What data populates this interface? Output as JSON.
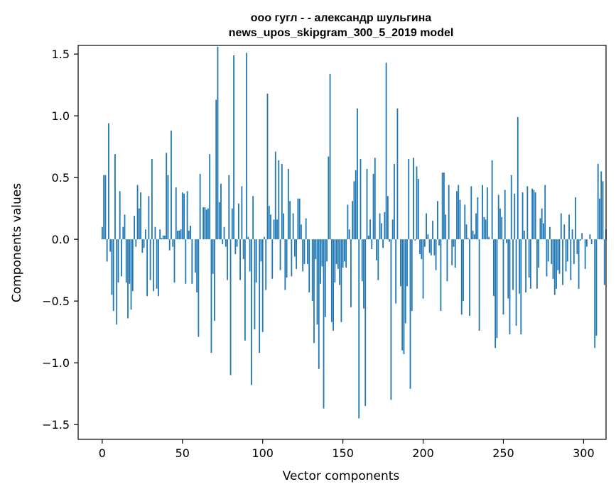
{
  "chart_data": {
    "type": "bar",
    "title_line1": "ооо гугл - - александр шульгина",
    "title_line2": "news_upos_skipgram_300_5_2019 model",
    "xlabel": "Vector components",
    "ylabel": "Components values",
    "xlim": [
      -15,
      314
    ],
    "ylim": [
      -1.62,
      1.57
    ],
    "xticks": [
      0,
      50,
      100,
      150,
      200,
      250,
      300
    ],
    "xtick_labels": [
      "0",
      "50",
      "100",
      "150",
      "200",
      "250",
      "300"
    ],
    "yticks": [
      -1.5,
      -1.0,
      -0.5,
      0.0,
      0.5,
      1.0,
      1.5
    ],
    "ytick_labels": [
      "−1.5",
      "−1.0",
      "−0.5",
      "0.0",
      "0.5",
      "1.0",
      "1.5"
    ],
    "bar_color": "#1f77b4",
    "grid": false,
    "legend": "none",
    "values": [
      0.1,
      0.52,
      0.52,
      -0.18,
      0.94,
      -0.1,
      -0.45,
      -0.58,
      0.69,
      -0.69,
      -0.35,
      0.39,
      -0.3,
      0.1,
      0.2,
      -0.35,
      -0.64,
      -0.36,
      -0.57,
      -0.42,
      0.19,
      -0.06,
      0.44,
      0.25,
      0.38,
      -0.11,
      -0.07,
      0.08,
      -0.46,
      0.35,
      -0.33,
      0.65,
      -0.42,
      0.1,
      -0.4,
      -0.46,
      0.08,
      0.01,
      0.03,
      0.03,
      0.7,
      0.52,
      -0.09,
      0.88,
      -0.06,
      -0.35,
      0.42,
      0.07,
      0.07,
      0.08,
      0.38,
      0.37,
      -0.36,
      0.39,
      0.07,
      0.11,
      -0.36,
      0.0,
      -0.27,
      -0.43,
      -0.79,
      0.53,
      0.0,
      0.26,
      0.26,
      0.24,
      0.25,
      0.69,
      -0.92,
      -0.28,
      -0.66,
      1.13,
      1.56,
      0.3,
      0.45,
      -0.04,
      0.1,
      -0.06,
      -0.33,
      0.52,
      -1.1,
      0.25,
      1.49,
      -0.12,
      -0.06,
      0.29,
      -0.33,
      0.43,
      -0.16,
      -0.82,
      1.51,
      0.02,
      -0.26,
      -1.18,
      0.35,
      -0.73,
      -0.35,
      0.0,
      -0.92,
      -0.18,
      -0.75,
      0.02,
      -0.41,
      1.18,
      0.27,
      0.2,
      -0.32,
      0.16,
      0.71,
      0.16,
      0.64,
      -0.25,
      0.61,
      0.21,
      -0.41,
      -0.31,
      0.57,
      0.31,
      -0.3,
      0.21,
      -0.14,
      -0.24,
      0.33,
      0.33,
      0.12,
      -0.26,
      -0.2,
      0.17,
      -0.2,
      -0.43,
      0.0,
      -0.5,
      -0.84,
      -0.16,
      -0.69,
      -1.05,
      -0.36,
      -0.22,
      -1.37,
      -0.63,
      -0.18,
      0.67,
      1.34,
      -0.67,
      -0.74,
      -0.35,
      -0.2,
      -0.24,
      -0.37,
      -0.67,
      -0.23,
      -0.18,
      -0.23,
      0.28,
      0.08,
      -0.55,
      0.31,
      0.47,
      0.56,
      1.06,
      -1.45,
      0.65,
      -0.34,
      -0.56,
      -1.35,
      0.57,
      0.03,
      0.16,
      -0.08,
      0.53,
      0.66,
      -0.17,
      -0.33,
      0.21,
      0.13,
      -0.07,
      0.22,
      1.43,
      0.35,
      -0.02,
      -1.3,
      0.16,
      0.61,
      -0.52,
      1.06,
      0.0,
      -0.38,
      -0.9,
      -0.93,
      -0.68,
      -0.38,
      0.65,
      -1.21,
      -0.58,
      0.66,
      -0.01,
      0.59,
      0.49,
      -0.12,
      -0.16,
      -0.48,
      -0.06,
      0.21,
      0.04,
      -0.11,
      -0.13,
      0.15,
      -0.13,
      -0.25,
      0.31,
      -0.05,
      -0.58,
      0.54,
      0.54,
      0.2,
      -0.34,
      0.44,
      0.0,
      -0.21,
      -0.06,
      -0.23,
      0.39,
      0.44,
      0.32,
      -0.61,
      -0.5,
      0.28,
      0.12,
      0.01,
      -0.62,
      0.43,
      0.07,
      0.04,
      0.21,
      0.34,
      -0.74,
      0.0,
      0.44,
      0.18,
      0.16,
      0.42,
      0.02,
      0.0,
      0.64,
      -0.46,
      -0.88,
      -0.8,
      0.36,
      0.25,
      0.18,
      -0.61,
      0.4,
      -0.03,
      -0.48,
      -0.77,
      0.52,
      -0.41,
      0.37,
      -0.7,
      0.99,
      -0.44,
      -0.77,
      0.38,
      0.07,
      -0.43,
      0.43,
      -0.31,
      -0.4,
      0.41,
      0.4,
      0.38,
      -0.4,
      -0.23,
      0.17,
      0.25,
      0.13,
      0.44,
      -0.3,
      -0.18,
      0.1,
      -0.2,
      -0.32,
      -0.45,
      -0.4,
      -0.25,
      -0.28,
      0.21,
      -0.37,
      0.12,
      -0.26,
      -0.18,
      0.2,
      -0.33,
      0.08,
      -0.2,
      0.34,
      -0.12,
      -0.4,
      -0.01,
      0.05,
      0.0,
      -0.24,
      -0.06,
      0.0,
      0.04,
      -0.04,
      0.0,
      -0.88,
      -0.78,
      0.61,
      0.33,
      0.55,
      0.47,
      -0.37,
      0.08
    ]
  }
}
